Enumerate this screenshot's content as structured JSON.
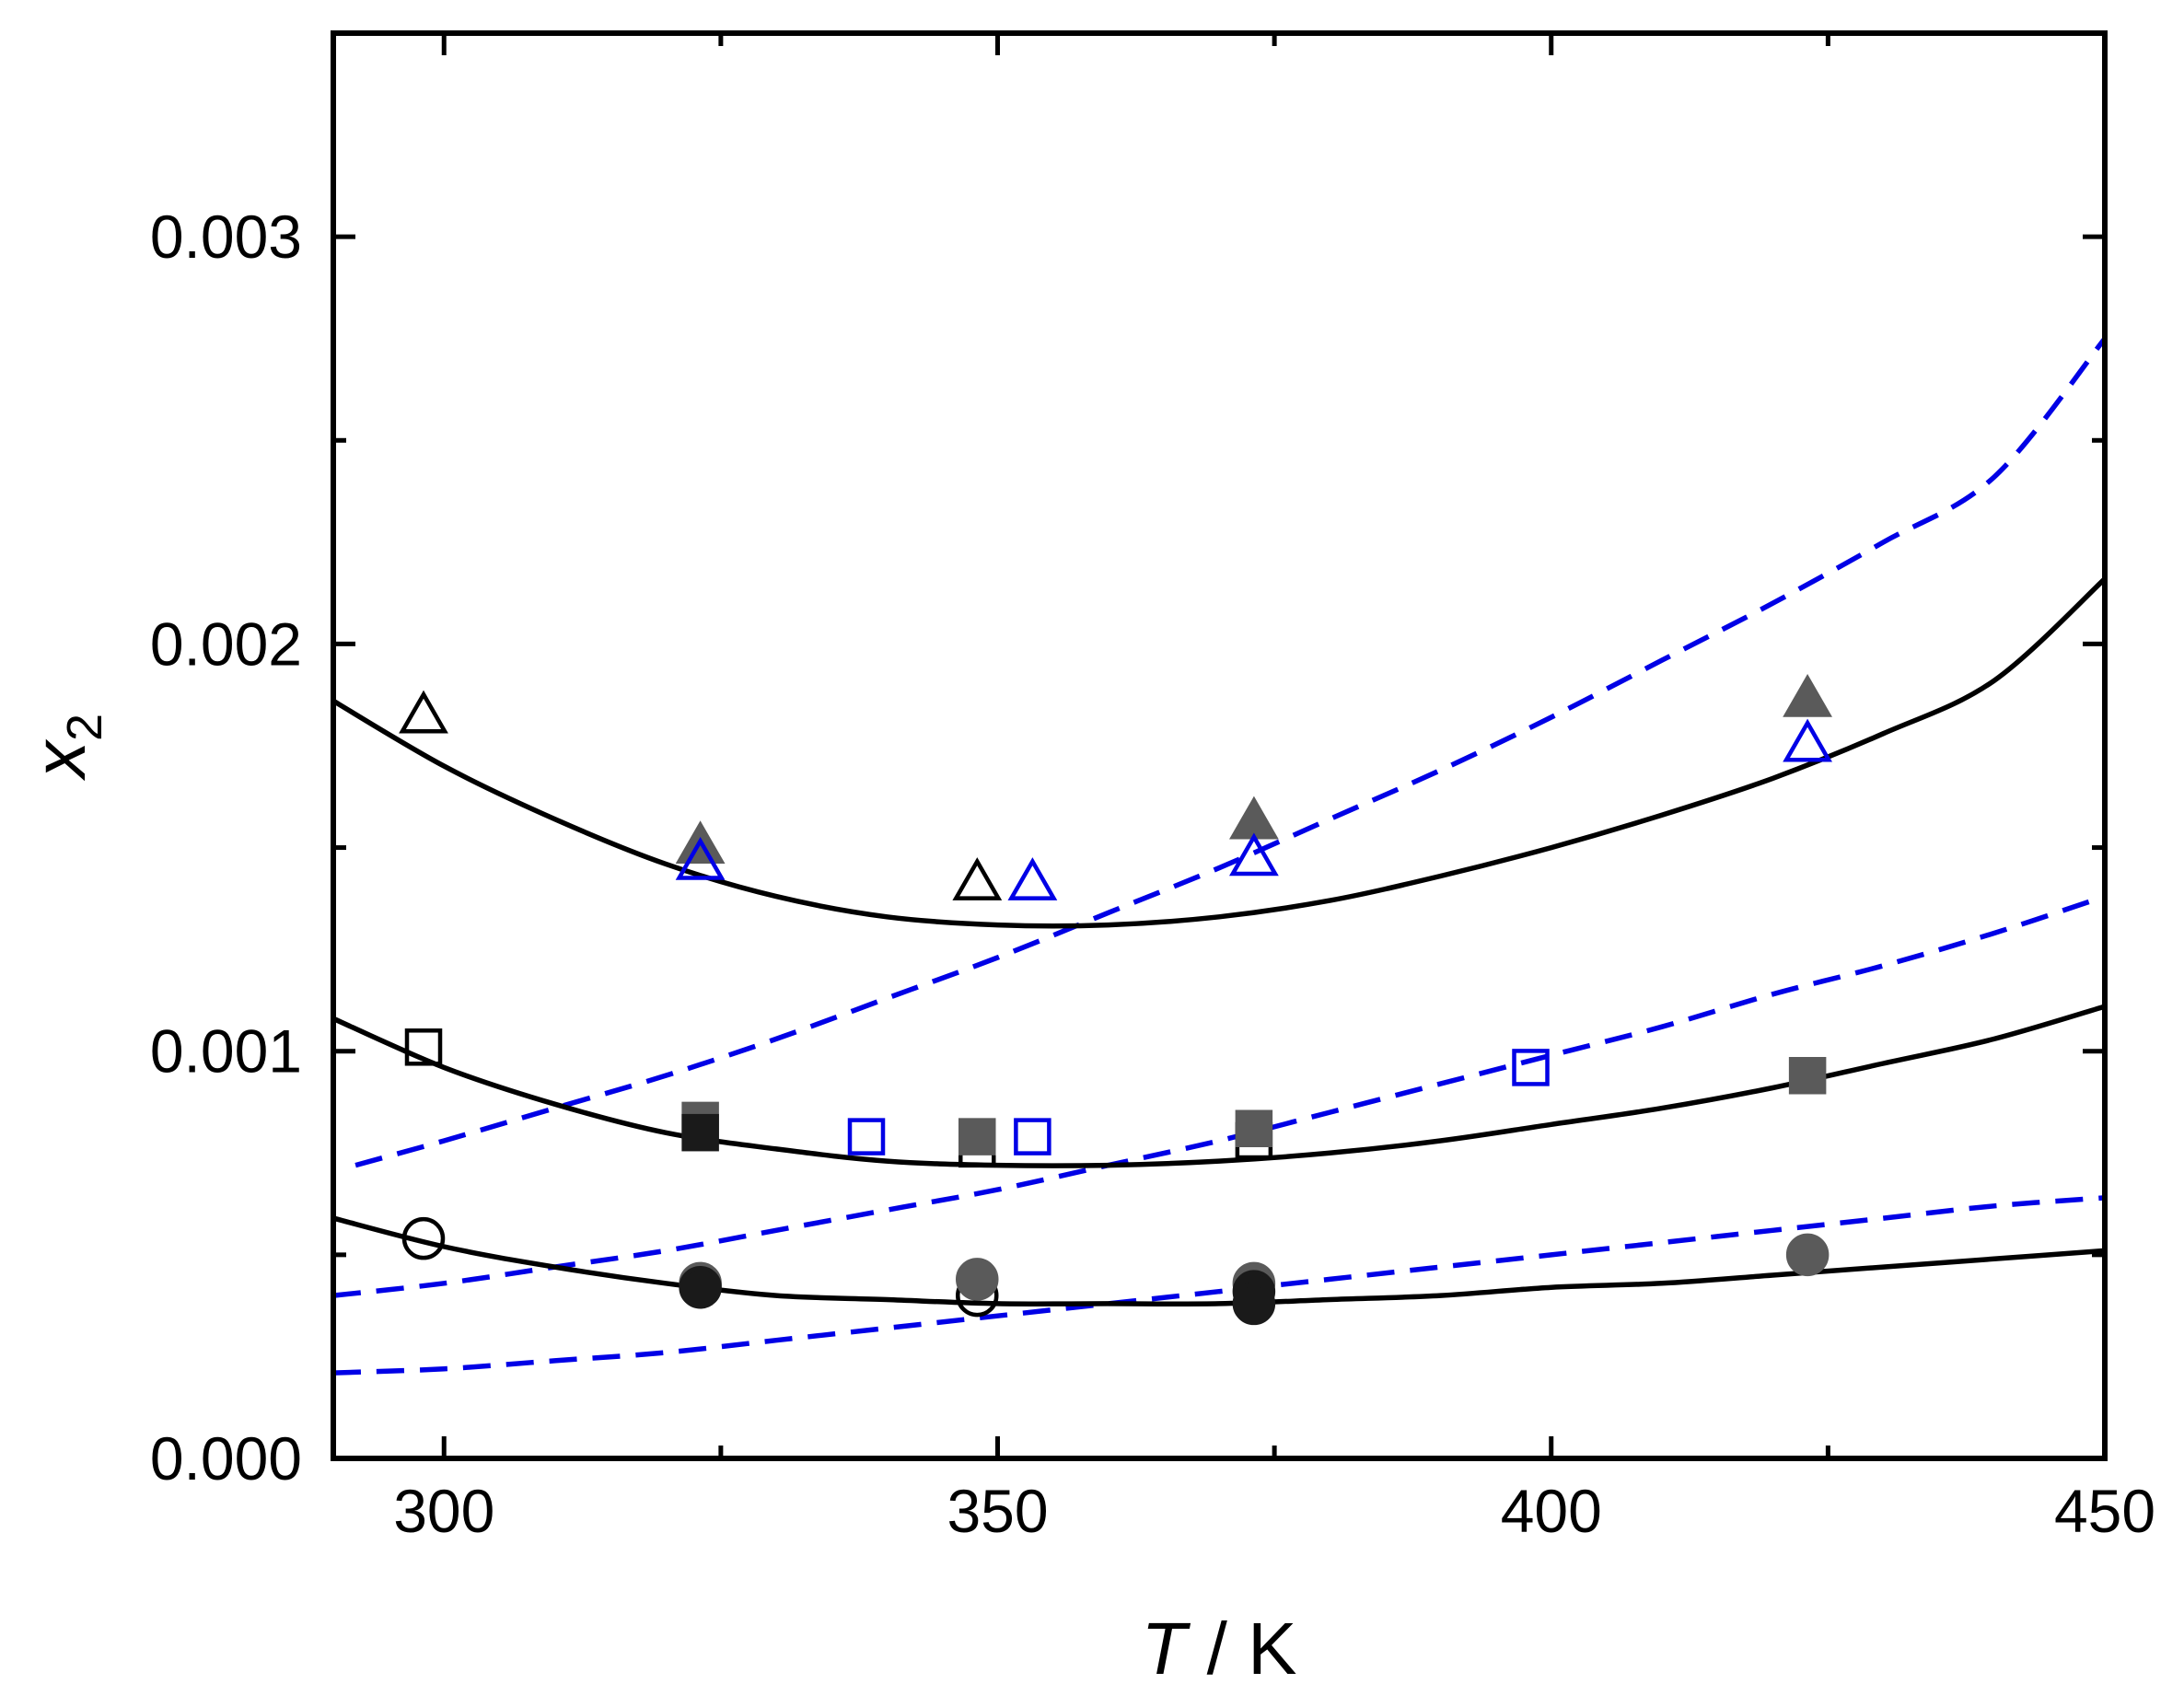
{
  "chart_data": {
    "type": "scatter",
    "title": "",
    "xlabel": "T / K",
    "xlabel_italic": "T",
    "xlabel_rest": " / K",
    "ylabel": "x2",
    "ylabel_main": "x",
    "ylabel_sub": "2",
    "xlim": [
      290,
      450
    ],
    "ylim": [
      0,
      0.0035
    ],
    "x_ticks": [
      300,
      350,
      400,
      450
    ],
    "x_tick_labels": [
      "300",
      "350",
      "400",
      "450"
    ],
    "x_minor_ticks": [
      325,
      375,
      425
    ],
    "y_ticks": [
      0,
      0.001,
      0.002,
      0.003
    ],
    "y_tick_labels": [
      "0.000",
      "0.001",
      "0.002",
      "0.003"
    ],
    "y_minor_ticks": [
      0.0005,
      0.0015,
      0.0025
    ],
    "grid": false,
    "colors": {
      "black": "#000000",
      "gray": "#5a5a5a",
      "dark": "#1a1a1a",
      "blue": "#0000e6"
    },
    "lines": [
      {
        "name": "solid-top",
        "style": "solid",
        "color": "#000000",
        "x": [
          290,
          300,
          310,
          320,
          330,
          340,
          350,
          360,
          370,
          380,
          390,
          400,
          410,
          420,
          430,
          440,
          450
        ],
        "y": [
          0.00186,
          0.0017,
          0.00157,
          0.00146,
          0.00138,
          0.00133,
          0.00131,
          0.00131,
          0.00133,
          0.00137,
          0.00143,
          0.0015,
          0.00158,
          0.00167,
          0.00178,
          0.00191,
          0.00216
        ]
      },
      {
        "name": "solid-mid",
        "style": "solid",
        "color": "#000000",
        "x": [
          290,
          300,
          310,
          320,
          330,
          340,
          350,
          360,
          370,
          380,
          390,
          400,
          410,
          420,
          430,
          440,
          450
        ],
        "y": [
          0.00108,
          0.00096,
          0.00087,
          0.0008,
          0.00076,
          0.00073,
          0.00072,
          0.00072,
          0.00073,
          0.00075,
          0.00078,
          0.00082,
          0.00086,
          0.00091,
          0.00097,
          0.00103,
          0.00111
        ]
      },
      {
        "name": "solid-low",
        "style": "solid",
        "color": "#000000",
        "x": [
          290,
          300,
          310,
          320,
          330,
          340,
          350,
          360,
          370,
          380,
          390,
          400,
          410,
          420,
          430,
          440,
          450
        ],
        "y": [
          0.00059,
          0.00052,
          0.00047,
          0.00043,
          0.0004,
          0.00039,
          0.00038,
          0.00038,
          0.00038,
          0.00039,
          0.0004,
          0.00042,
          0.00043,
          0.00045,
          0.00047,
          0.00049,
          0.00051
        ]
      },
      {
        "name": "dashed-top",
        "style": "dashed",
        "color": "#0000e6",
        "x": [
          292,
          300,
          310,
          320,
          330,
          340,
          350,
          360,
          370,
          380,
          390,
          400,
          410,
          420,
          430,
          440,
          450
        ],
        "y": [
          0.00072,
          0.00078,
          0.00086,
          0.00094,
          0.00103,
          0.00113,
          0.00123,
          0.00134,
          0.00145,
          0.00157,
          0.00169,
          0.00182,
          0.00196,
          0.0021,
          0.00225,
          0.00241,
          0.00275
        ]
      },
      {
        "name": "dashed-mid",
        "style": "dashed",
        "color": "#0000e6",
        "x": [
          290,
          300,
          310,
          320,
          330,
          340,
          350,
          360,
          370,
          380,
          390,
          400,
          410,
          420,
          430,
          440,
          450
        ],
        "y": [
          0.0004,
          0.00043,
          0.00047,
          0.00051,
          0.00056,
          0.00061,
          0.00066,
          0.00072,
          0.00078,
          0.00085,
          0.00092,
          0.00099,
          0.00106,
          0.00114,
          0.00121,
          0.00129,
          0.00138
        ]
      },
      {
        "name": "dashed-low",
        "style": "dashed",
        "color": "#0000e6",
        "x": [
          290,
          300,
          310,
          320,
          330,
          340,
          350,
          360,
          370,
          380,
          390,
          400,
          410,
          420,
          430,
          440,
          450
        ],
        "y": [
          0.00021,
          0.00022,
          0.00024,
          0.00026,
          0.00029,
          0.00032,
          0.00035,
          0.00038,
          0.00041,
          0.00044,
          0.00047,
          0.0005,
          0.00053,
          0.00056,
          0.00059,
          0.00062,
          0.00064
        ]
      }
    ],
    "series": [
      {
        "name": "open-triangle-black",
        "marker": "triangle",
        "fill": "none",
        "stroke": "#000000",
        "points": [
          [
            298.15,
            0.00182
          ],
          [
            348.15,
            0.00141
          ]
        ]
      },
      {
        "name": "filled-triangle-gray",
        "marker": "triangle",
        "fill": "#5a5a5a",
        "stroke": "#5a5a5a",
        "points": [
          [
            323.15,
            0.0015
          ],
          [
            373.15,
            0.00156
          ],
          [
            423.15,
            0.00186
          ]
        ]
      },
      {
        "name": "open-triangle-blue",
        "marker": "triangle",
        "fill": "none",
        "stroke": "#0000e6",
        "points": [
          [
            323.15,
            0.00146
          ],
          [
            353.15,
            0.00141
          ],
          [
            373.15,
            0.00147
          ],
          [
            423.15,
            0.00175
          ]
        ]
      },
      {
        "name": "open-square-black",
        "marker": "square",
        "fill": "none",
        "stroke": "#000000",
        "points": [
          [
            298.15,
            0.00101
          ],
          [
            348.15,
            0.00076
          ],
          [
            373.15,
            0.00078
          ]
        ]
      },
      {
        "name": "filled-square-gray",
        "marker": "square",
        "fill": "#5a5a5a",
        "stroke": "#5a5a5a",
        "points": [
          [
            323.15,
            0.00083
          ],
          [
            348.15,
            0.00079
          ],
          [
            373.15,
            0.00081
          ],
          [
            423.15,
            0.00094
          ]
        ]
      },
      {
        "name": "filled-square-dark",
        "marker": "square",
        "fill": "#1a1a1a",
        "stroke": "#1a1a1a",
        "points": [
          [
            323.15,
            0.0008
          ]
        ]
      },
      {
        "name": "open-square-blue",
        "marker": "square",
        "fill": "none",
        "stroke": "#0000e6",
        "points": [
          [
            338.15,
            0.00079
          ],
          [
            353.15,
            0.00079
          ],
          [
            398.15,
            0.00096
          ]
        ]
      },
      {
        "name": "open-circle-black",
        "marker": "circle",
        "fill": "none",
        "stroke": "#000000",
        "points": [
          [
            298.15,
            0.00054
          ],
          [
            348.15,
            0.0004
          ]
        ]
      },
      {
        "name": "filled-circle-gray",
        "marker": "circle",
        "fill": "#5a5a5a",
        "stroke": "#5a5a5a",
        "points": [
          [
            323.15,
            0.00043
          ],
          [
            348.15,
            0.00044
          ],
          [
            373.15,
            0.00043
          ],
          [
            423.15,
            0.0005
          ]
        ]
      },
      {
        "name": "filled-circle-dark",
        "marker": "circle",
        "fill": "#1a1a1a",
        "stroke": "#1a1a1a",
        "points": [
          [
            323.15,
            0.00042
          ],
          [
            373.15,
            0.00041
          ],
          [
            373.15,
            0.00038
          ]
        ]
      }
    ]
  }
}
